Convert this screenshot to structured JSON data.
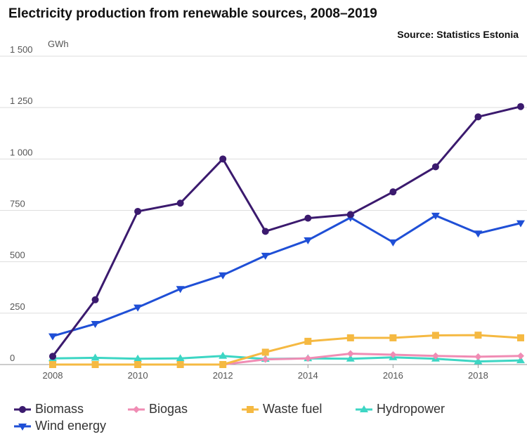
{
  "title": "Electricity production from renewable sources, 2008–2019",
  "source": "Source: Statistics Estonia",
  "unit": "GWh",
  "chart_data": {
    "type": "line",
    "title": "Electricity production from renewable sources, 2008–2019",
    "ylabel": "GWh",
    "xlabel": "",
    "x": [
      2008,
      2009,
      2010,
      2011,
      2012,
      2013,
      2014,
      2015,
      2016,
      2017,
      2018,
      2019
    ],
    "xlim": [
      2008,
      2019
    ],
    "ylim": [
      0,
      1500
    ],
    "x_ticks": [
      2008,
      2010,
      2012,
      2014,
      2016,
      2018
    ],
    "x_tick_labels": [
      "2008",
      "2010",
      "2012",
      "2014",
      "2016",
      "2018"
    ],
    "y_ticks": [
      0,
      250,
      500,
      750,
      1000,
      1250,
      1500
    ],
    "y_tick_labels": [
      "0",
      "250",
      "500",
      "750",
      "1 000",
      "1 250",
      "1 500"
    ],
    "grid": true,
    "legend_position": "bottom",
    "series": [
      {
        "name": "Biomass",
        "color": "#3b1a6e",
        "marker": "circle",
        "values": [
          40,
          315,
          745,
          785,
          1000,
          648,
          712,
          730,
          840,
          962,
          1205,
          1255
        ]
      },
      {
        "name": "Biogas",
        "color": "#f08cb4",
        "marker": "diamond",
        "values": [
          0,
          0,
          0,
          0,
          0,
          25,
          30,
          53,
          48,
          42,
          38,
          42
        ]
      },
      {
        "name": "Waste fuel",
        "color": "#f5b942",
        "marker": "square",
        "values": [
          0,
          0,
          0,
          0,
          0,
          60,
          113,
          130,
          130,
          142,
          143,
          130
        ]
      },
      {
        "name": "Hydropower",
        "color": "#3dd6c4",
        "marker": "triangle-up",
        "values": [
          30,
          33,
          28,
          30,
          42,
          27,
          30,
          28,
          35,
          28,
          15,
          20
        ]
      },
      {
        "name": "Wind energy",
        "color": "#1f4fd6",
        "marker": "triangle-down",
        "values": [
          138,
          198,
          278,
          368,
          435,
          530,
          605,
          715,
          595,
          725,
          638,
          688
        ]
      }
    ]
  }
}
